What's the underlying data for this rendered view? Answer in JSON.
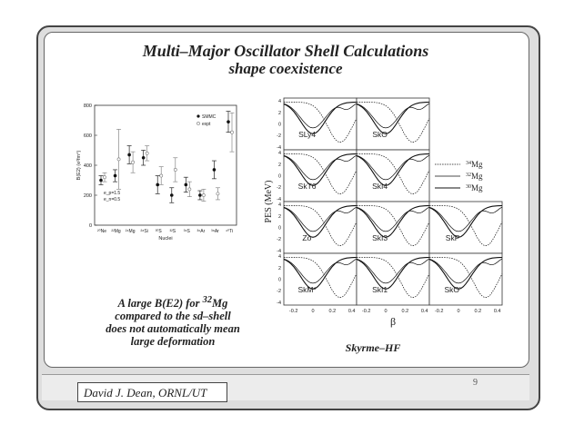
{
  "title": "Multi–Major Oscillator Shell Calculations",
  "subtitle": "shape coexistence",
  "caption_lines": [
    "A large B(E2) for 32Mg",
    "compared to the sd–shell",
    "does not automatically mean",
    "large deformation"
  ],
  "caption": {
    "line1_pre": "A large B(E2) for ",
    "line1_sup": "32",
    "line1_post": "Mg",
    "line2": "compared to the sd–shell",
    "line3": "does not automatically mean",
    "line4": "large deformation"
  },
  "author": "David J. Dean, ORNL/UT",
  "page_number": "9",
  "skyrme_label": "Skyrme–HF",
  "chart_data": [
    {
      "type": "scatter",
      "ylabel": "B(E2) (e²fm⁴)",
      "xlabel": "Nuclei",
      "ylim": [
        0,
        800
      ],
      "yticks": [
        "0",
        "200",
        "400",
        "600",
        "800"
      ],
      "categories": [
        "²⁰Ne",
        "²²Mg",
        "²⁴Mg",
        "²⁸Si",
        "³⁰S",
        "³²S",
        "³⁶S",
        "³⁶Ar",
        "³⁸Ar",
        "⁴⁰Ti"
      ],
      "legend": [
        "SMMC",
        "expt"
      ],
      "annotations": [
        "e_p=1.5",
        "e_n=0.5"
      ],
      "series": [
        {
          "name": "SMMC",
          "values": [
            300,
            330,
            470,
            450,
            270,
            200,
            270,
            200,
            370,
            690
          ],
          "err": [
            30,
            40,
            60,
            50,
            60,
            50,
            50,
            30,
            60,
            70
          ]
        },
        {
          "name": "expt",
          "values": [
            320,
            440,
            420,
            480,
            330,
            370,
            240,
            200,
            210,
            620
          ],
          "err": [
            30,
            200,
            70,
            50,
            60,
            80,
            50,
            40,
            40,
            130
          ]
        }
      ]
    },
    {
      "type": "line",
      "ylabel": "PES (MeV)",
      "xlabel": "β",
      "xticks": [
        "-0.2",
        "0",
        "0.2",
        "0.4"
      ],
      "yticks": [
        "4",
        "2",
        "0",
        "-2",
        "-4"
      ],
      "xlim": [
        -0.3,
        0.45
      ],
      "ylim": [
        -4.5,
        4.5
      ],
      "legend": [
        "34Mg",
        "32Mg",
        "30Mg"
      ],
      "panels": [
        "SLy4",
        "SkO",
        "SkT6",
        "SkI4",
        "Zσ",
        "SkI3",
        "SkP",
        "SkM*",
        "SkI1",
        "SkO'"
      ]
    }
  ],
  "legend_pes": [
    {
      "sup": "34",
      "el": "Mg"
    },
    {
      "sup": "32",
      "el": "Mg"
    },
    {
      "sup": "30",
      "el": "Mg"
    }
  ]
}
